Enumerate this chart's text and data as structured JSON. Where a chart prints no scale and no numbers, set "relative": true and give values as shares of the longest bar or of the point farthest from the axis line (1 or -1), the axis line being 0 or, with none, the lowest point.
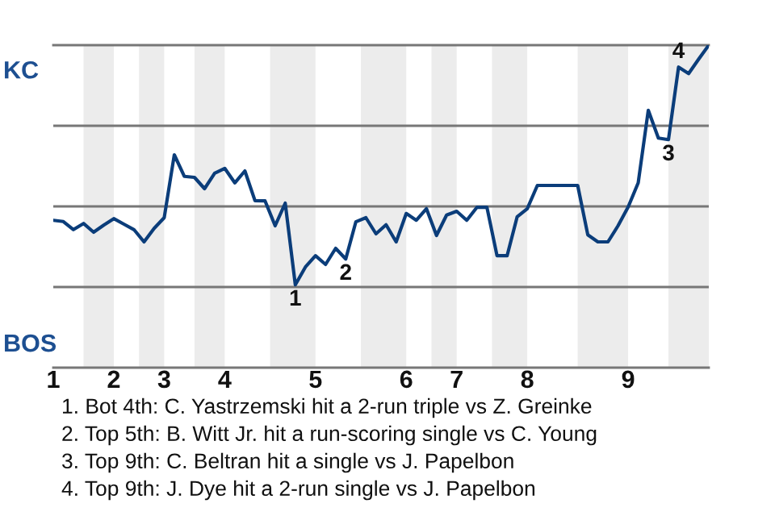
{
  "chart_data": {
    "type": "line",
    "relative": true,
    "categories": [
      "1",
      null,
      null,
      null,
      null,
      null,
      "2",
      null,
      null,
      null,
      null,
      "3",
      null,
      null,
      null,
      null,
      null,
      "4",
      null,
      null,
      null,
      null,
      null,
      null,
      null,
      null,
      "5",
      null,
      null,
      null,
      null,
      null,
      null,
      null,
      null,
      "6",
      null,
      null,
      null,
      null,
      "7",
      null,
      null,
      null,
      null,
      null,
      null,
      "8",
      null,
      null,
      null,
      null,
      null,
      null,
      null,
      null,
      null,
      "9",
      null,
      null,
      null,
      null,
      null,
      null,
      null,
      null
    ],
    "series": [
      {
        "color": "#0b3d7a",
        "values": [
          0.457,
          0.453,
          0.428,
          0.447,
          0.42,
          0.442,
          0.462,
          0.445,
          0.428,
          0.39,
          0.432,
          0.465,
          0.66,
          0.593,
          0.59,
          0.555,
          0.603,
          0.618,
          0.573,
          0.61,
          0.518,
          0.517,
          0.44,
          0.51,
          0.257,
          0.312,
          0.347,
          0.32,
          0.37,
          0.337,
          0.452,
          0.465,
          0.415,
          0.443,
          0.39,
          0.478,
          0.457,
          0.493,
          0.41,
          0.473,
          0.485,
          0.457,
          0.497,
          0.497,
          0.347,
          0.347,
          0.468,
          0.493,
          0.565,
          0.565,
          0.565,
          0.565,
          0.565,
          0.412,
          0.39,
          0.39,
          0.44,
          0.498,
          0.573,
          0.798,
          0.712,
          0.707,
          0.932,
          0.912,
          0.957,
          1
        ]
      }
    ],
    "ref_lines": [
      {
        "axis": "y",
        "value": 0.25,
        "color": "#777777"
      },
      {
        "axis": "y",
        "value": 0.5,
        "color": "#777777"
      },
      {
        "axis": "y",
        "value": 0.75,
        "color": "#777777"
      }
    ],
    "legend": false,
    "line_style": "solid",
    "marker": "none",
    "annotations": [
      "KC",
      "BOS",
      {
        "text": "1",
        "y": 0.257
      },
      {
        "text": "2",
        "y": 0.337
      },
      {
        "text": "3",
        "y": 0.707
      },
      {
        "text": "4",
        "y": 0.932
      },
      "1. Bot 4th: C. Yastrzemski hit a 2-run triple vs Z. Greinke",
      "2. Top 5th: B. Witt Jr. hit a run-scoring single vs C. Young",
      "3. Top 9th: C. Beltran hit a single vs J. Papelbon",
      "4. Top 9th: J. Dye hit a 2-run single vs J. Papelbon"
    ]
  }
}
